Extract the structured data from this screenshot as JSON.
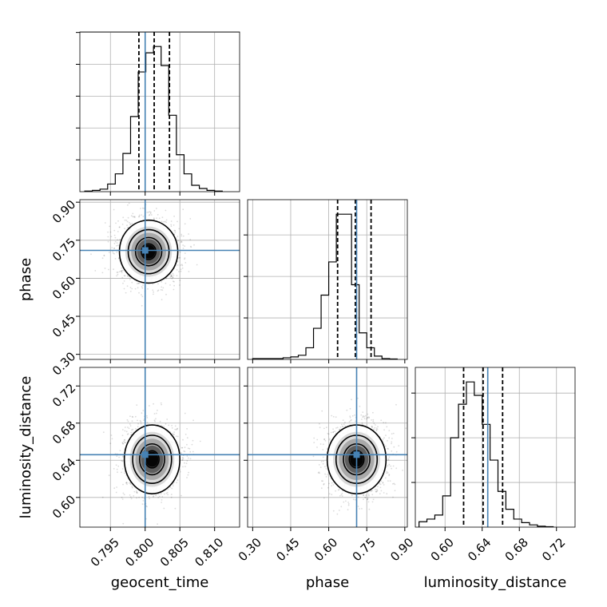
{
  "chart_data": {
    "type": "corner",
    "parameters": [
      {
        "key": "geocent_time",
        "label": "geocent_time",
        "range": [
          0.7906,
          0.8136
        ],
        "ticks": [
          "0.795",
          "0.800",
          "0.805",
          "0.810"
        ],
        "truth": 0.8,
        "quantiles": [
          0.7991,
          0.8013,
          0.8035
        ]
      },
      {
        "key": "phase",
        "label": "phase",
        "range": [
          0.28,
          0.91
        ],
        "ticks": [
          "0.30",
          "0.45",
          "0.60",
          "0.75",
          "0.90"
        ],
        "truth": 0.71,
        "quantiles": [
          0.635,
          0.705,
          0.767
        ]
      },
      {
        "key": "luminosity_distance",
        "label": "luminosity_distance",
        "range": [
          0.568,
          0.74
        ],
        "ticks": [
          "0.60",
          "0.64",
          "0.68",
          "0.72"
        ],
        "truth": 0.646,
        "quantiles": [
          0.62,
          0.641,
          0.662
        ]
      }
    ],
    "histograms": {
      "geocent_time": {
        "edges_start": 0.7913,
        "bin_width": 0.0011,
        "counts": [
          1,
          2,
          4,
          12,
          28,
          60,
          118,
          188,
          218,
          228,
          198,
          120,
          58,
          28,
          10,
          5,
          2,
          1
        ]
      },
      "phase": {
        "edges_start": 0.3,
        "bin_width": 0.03,
        "counts": [
          2,
          2,
          2,
          2,
          4,
          6,
          10,
          28,
          75,
          155,
          235,
          350,
          350,
          180,
          64,
          28,
          8,
          2,
          1
        ]
      },
      "luminosity_distance": {
        "edges_start": 0.572,
        "bin_width": 0.0085,
        "counts": [
          12,
          18,
          27,
          70,
          200,
          275,
          325,
          295,
          230,
          150,
          80,
          40,
          18,
          10,
          5,
          2,
          1
        ]
      }
    },
    "joint": {
      "phase|geocent_time": {
        "mean": [
          0.8005,
          0.705
        ],
        "sd": [
          0.0021,
          0.062
        ]
      },
      "luminosity_distance|geocent_time": {
        "mean": [
          0.801,
          0.641
        ],
        "sd": [
          0.002,
          0.0185
        ]
      },
      "luminosity_distance|phase": {
        "mean": [
          0.71,
          0.641
        ],
        "sd": [
          0.058,
          0.0185
        ]
      }
    },
    "grid": true,
    "truth_color": "#4682b4",
    "contour_color": "#000000"
  }
}
